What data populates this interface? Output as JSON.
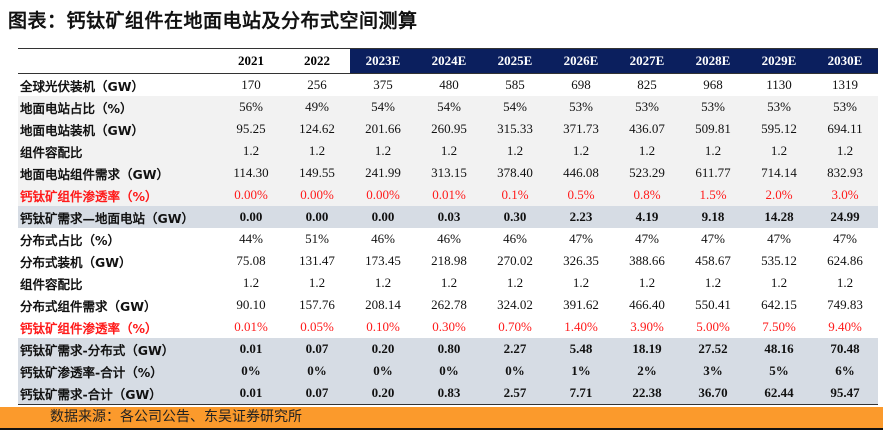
{
  "title": "图表：钙钛矿组件在地面电站及分布式空间测算",
  "columns": [
    "2021",
    "2022",
    "2023E",
    "2024E",
    "2025E",
    "2026E",
    "2027E",
    "2028E",
    "2029E",
    "2030E"
  ],
  "rows": [
    {
      "label": "全球光伏装机（GW）",
      "style": "w",
      "values": [
        "170",
        "256",
        "375",
        "480",
        "585",
        "698",
        "825",
        "968",
        "1130",
        "1319"
      ]
    },
    {
      "label": "地面电站占比（%）",
      "style": "g",
      "values": [
        "56%",
        "49%",
        "54%",
        "54%",
        "54%",
        "53%",
        "53%",
        "53%",
        "53%",
        "53%"
      ]
    },
    {
      "label": "地面电站装机（GW）",
      "style": "g",
      "values": [
        "95.25",
        "124.62",
        "201.66",
        "260.95",
        "315.33",
        "371.73",
        "436.07",
        "509.81",
        "595.12",
        "694.11"
      ]
    },
    {
      "label": "组件容配比",
      "style": "g",
      "values": [
        "1.2",
        "1.2",
        "1.2",
        "1.2",
        "1.2",
        "1.2",
        "1.2",
        "1.2",
        "1.2",
        "1.2"
      ]
    },
    {
      "label": "地面电站组件需求（GW）",
      "style": "g",
      "values": [
        "114.30",
        "149.55",
        "241.99",
        "313.15",
        "378.40",
        "446.08",
        "523.29",
        "611.77",
        "714.14",
        "832.93"
      ]
    },
    {
      "label": "钙钛矿组件渗透率（%）",
      "style": "g red",
      "values": [
        "0.00%",
        "0.00%",
        "0.00%",
        "0.01%",
        "0.1%",
        "0.5%",
        "0.8%",
        "1.5%",
        "2.0%",
        "3.0%"
      ]
    },
    {
      "label": "钙钛矿需求—地面电站（GW）",
      "style": "b",
      "values": [
        "0.00",
        "0.00",
        "0.00",
        "0.03",
        "0.30",
        "2.23",
        "4.19",
        "9.18",
        "14.28",
        "24.99"
      ]
    },
    {
      "label": "分布式占比（%）",
      "style": "w",
      "values": [
        "44%",
        "51%",
        "46%",
        "46%",
        "46%",
        "47%",
        "47%",
        "47%",
        "47%",
        "47%"
      ]
    },
    {
      "label": "分布式装机（GW）",
      "style": "w",
      "values": [
        "75.08",
        "131.47",
        "173.45",
        "218.98",
        "270.02",
        "326.35",
        "388.66",
        "458.67",
        "535.12",
        "624.86"
      ]
    },
    {
      "label": "组件容配比",
      "style": "w",
      "values": [
        "1.2",
        "1.2",
        "1.2",
        "1.2",
        "1.2",
        "1.2",
        "1.2",
        "1.2",
        "1.2",
        "1.2"
      ]
    },
    {
      "label": "分布式组件需求（GW）",
      "style": "w",
      "values": [
        "90.10",
        "157.76",
        "208.14",
        "262.78",
        "324.02",
        "391.62",
        "466.40",
        "550.41",
        "642.15",
        "749.83"
      ]
    },
    {
      "label": "钙钛矿组件渗透率（%）",
      "style": "w red",
      "values": [
        "0.01%",
        "0.05%",
        "0.10%",
        "0.30%",
        "0.70%",
        "1.40%",
        "3.90%",
        "5.00%",
        "7.50%",
        "9.40%"
      ]
    },
    {
      "label": "钙钛矿需求-分布式（GW）",
      "style": "b",
      "values": [
        "0.01",
        "0.07",
        "0.20",
        "0.80",
        "2.27",
        "5.48",
        "18.19",
        "27.52",
        "48.16",
        "70.48"
      ]
    },
    {
      "label": "钙钛矿渗透率-合计（%）",
      "style": "b",
      "values": [
        "0%",
        "0%",
        "0%",
        "0%",
        "0%",
        "1%",
        "2%",
        "3%",
        "5%",
        "6%"
      ]
    },
    {
      "label": "钙钛矿需求-合计（GW）",
      "style": "b",
      "values": [
        "0.01",
        "0.07",
        "0.20",
        "0.83",
        "2.57",
        "7.71",
        "22.38",
        "36.70",
        "62.44",
        "95.47"
      ]
    }
  ],
  "source": "数据来源：各公司公告、东吴证券研究所",
  "colors": {
    "header_estimate": "#0b1f5e",
    "highlight_red": "#ff1a1a",
    "summary_row": "#d6dce4",
    "alt_row": "#f2f2f2",
    "footer": "#fb9a2c"
  }
}
